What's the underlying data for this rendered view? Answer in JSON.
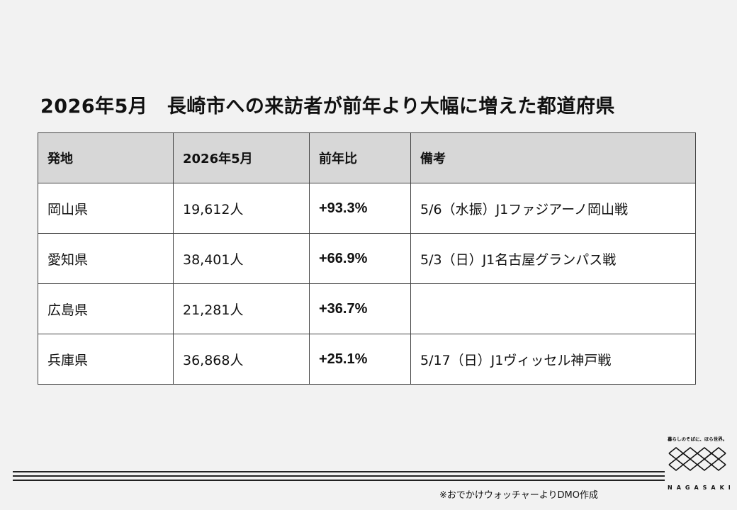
{
  "title": "2026年5月　長崎市への来訪者が前年より大幅に増えた都道府県",
  "table": {
    "headers": [
      "発地",
      "2026年5月",
      "前年比",
      "備考"
    ],
    "rows": [
      {
        "origin": "岡山県",
        "visitors": "19,612人",
        "yoy": "+93.3%",
        "note": "5/6（水振）J1ファジアーノ岡山戦"
      },
      {
        "origin": "愛知県",
        "visitors": "38,401人",
        "yoy": "+66.9%",
        "note": "5/3（日）J1名古屋グランパス戦"
      },
      {
        "origin": "広島県",
        "visitors": "21,281人",
        "yoy": "+36.7%",
        "note": ""
      },
      {
        "origin": "兵庫県",
        "visitors": "36,868人",
        "yoy": "+25.1%",
        "note": "5/17（日）J1ヴィッセル神戸戦"
      }
    ]
  },
  "footer": {
    "credit": "※おでかけウォッチャーよりDMO作成"
  },
  "logo": {
    "tagline": "暮らしのそばに、ほら世界。",
    "wordmark": "NAGASAKI",
    "icon": "diamond-lattice-icon"
  }
}
